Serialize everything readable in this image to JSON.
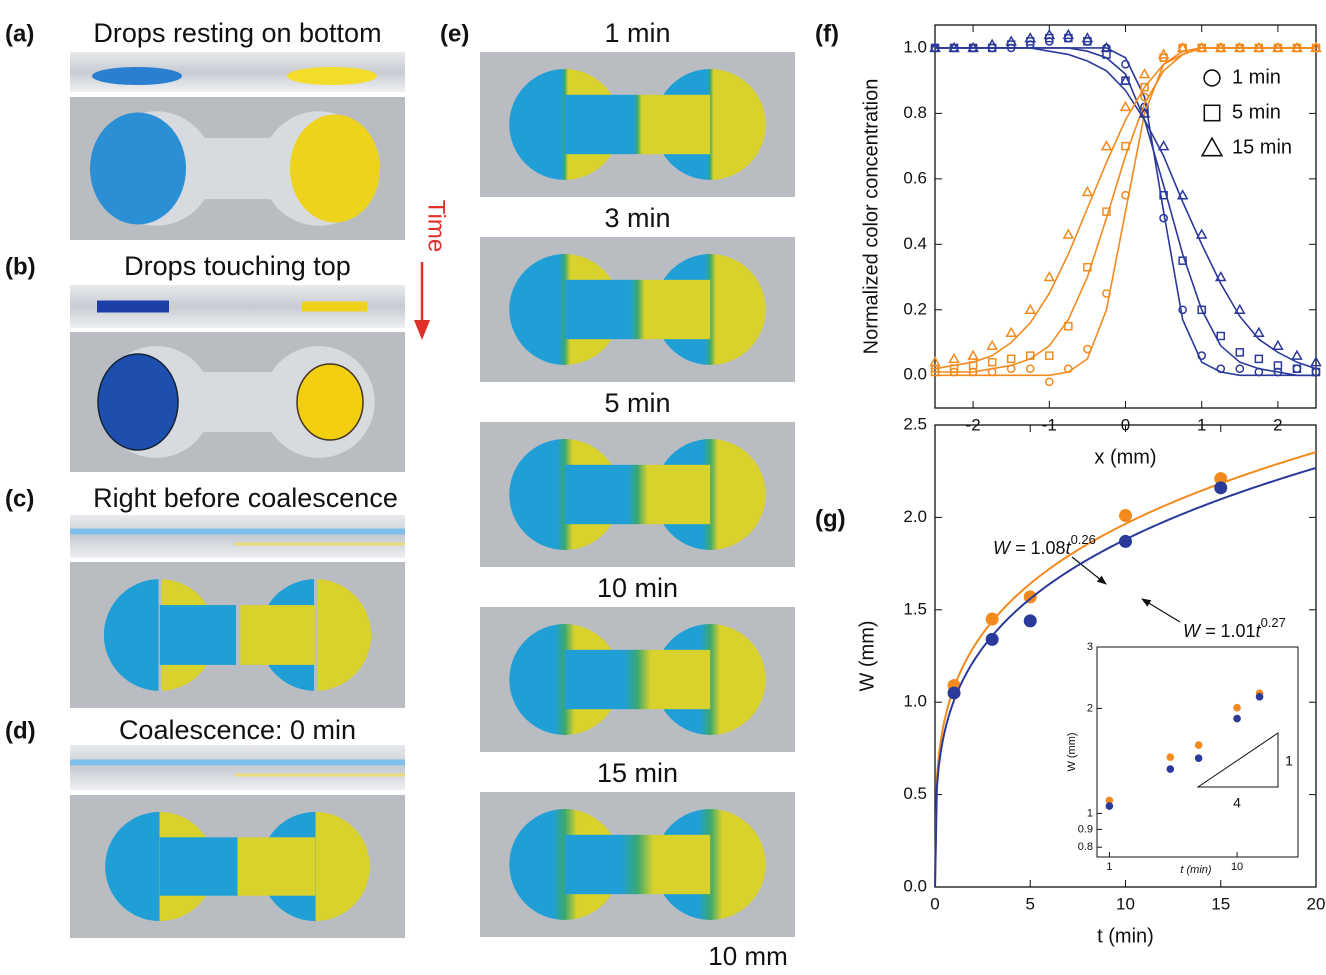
{
  "panels": [
    {
      "label": "(a)",
      "title": "Drops resting on bottom"
    },
    {
      "label": "(b)",
      "title": "Drops touching top"
    },
    {
      "label": "(c)",
      "title": "Right before coalescence"
    },
    {
      "label": "(d)",
      "title": "Coalescence: 0 min"
    },
    {
      "label": "(e)",
      "frames": [
        "1 min",
        "3 min",
        "5 min",
        "10 min",
        "15 min"
      ]
    }
  ],
  "time_arrow": "Time",
  "scale_bar": "10 mm",
  "chart_data": [
    {
      "type": "scatter",
      "panel": "(f)",
      "xlabel": "x (mm)",
      "ylabel": "Normalized color concentration",
      "xlim": [
        -2.5,
        2.5
      ],
      "ylim": [
        -0.1,
        1.07
      ],
      "xticks": [
        -2,
        -1,
        0,
        1,
        2
      ],
      "yticks": [
        {
          "value": 0,
          "label": "0.0"
        },
        0.2,
        0.4,
        0.6,
        0.8,
        {
          "value": 1,
          "label": "1.0"
        }
      ],
      "x": [
        -2.5,
        -2.25,
        -2,
        -1.75,
        -1.5,
        -1.25,
        -1,
        -0.75,
        -0.5,
        -0.25,
        0,
        0.25,
        0.5,
        0.75,
        1,
        1.25,
        1.5,
        1.75,
        2,
        2.25,
        2.5
      ],
      "series": [
        {
          "name": "1 min",
          "marker": "circle",
          "groups": [
            {
              "color": "#2b3a9a",
              "values": [
                1,
                1,
                1,
                1,
                1,
                1.01,
                1.02,
                1.03,
                1.02,
                1.0,
                0.95,
                0.82,
                0.48,
                0.2,
                0.06,
                0.02,
                0.02,
                0.01,
                0.01,
                0.02,
                0.01
              ],
              "fit": [
                1,
                1,
                1,
                1,
                1,
                1,
                1,
                1,
                1,
                1,
                0.97,
                0.85,
                0.5,
                0.17,
                0.04,
                0.01,
                0,
                0,
                0,
                0,
                0
              ]
            },
            {
              "color": "#f28a1e",
              "values": [
                0.02,
                0.01,
                0.01,
                0.01,
                0.02,
                0.02,
                -0.02,
                0.02,
                0.08,
                0.25,
                0.55,
                0.85,
                0.97,
                1,
                1,
                1,
                1,
                1,
                1,
                1,
                1
              ],
              "fit": [
                0,
                0,
                0,
                0,
                0,
                0,
                0,
                0.01,
                0.05,
                0.2,
                0.5,
                0.8,
                0.95,
                0.99,
                1,
                1,
                1,
                1,
                1,
                1,
                1
              ]
            }
          ]
        },
        {
          "name": "5 min",
          "marker": "square",
          "groups": [
            {
              "color": "#2b3a9a",
              "values": [
                1,
                1,
                1,
                1,
                1.01,
                1.02,
                1.03,
                1.03,
                1.02,
                0.98,
                0.9,
                0.8,
                0.55,
                0.35,
                0.2,
                0.12,
                0.07,
                0.05,
                0.03,
                0.02,
                0.01
              ],
              "fit": [
                1,
                1,
                1,
                1,
                1,
                1,
                1,
                1,
                0.99,
                0.97,
                0.92,
                0.78,
                0.58,
                0.37,
                0.2,
                0.09,
                0.04,
                0.02,
                0.01,
                0,
                0
              ]
            },
            {
              "color": "#f28a1e",
              "values": [
                0.01,
                0.02,
                0.03,
                0.04,
                0.05,
                0.06,
                0.06,
                0.15,
                0.33,
                0.5,
                0.7,
                0.88,
                0.97,
                1,
                1,
                1,
                1,
                1,
                1,
                1,
                1
              ],
              "fit": [
                0.01,
                0.01,
                0.01,
                0.02,
                0.03,
                0.05,
                0.09,
                0.17,
                0.3,
                0.48,
                0.67,
                0.83,
                0.93,
                0.98,
                1,
                1,
                1,
                1,
                1,
                1,
                1
              ]
            }
          ]
        },
        {
          "name": "15 min",
          "marker": "triangle",
          "groups": [
            {
              "color": "#2b3a9a",
              "values": [
                1,
                1,
                1,
                1.01,
                1.02,
                1.03,
                1.04,
                1.04,
                1.03,
                1.0,
                0.9,
                0.8,
                0.7,
                0.55,
                0.43,
                0.3,
                0.2,
                0.13,
                0.09,
                0.06,
                0.04
              ],
              "fit": [
                1,
                1,
                1,
                1,
                1,
                1,
                0.99,
                0.98,
                0.96,
                0.93,
                0.87,
                0.78,
                0.67,
                0.53,
                0.4,
                0.28,
                0.18,
                0.11,
                0.07,
                0.04,
                0.02
              ]
            },
            {
              "color": "#f28a1e",
              "values": [
                0.04,
                0.05,
                0.06,
                0.09,
                0.13,
                0.2,
                0.3,
                0.43,
                0.56,
                0.7,
                0.82,
                0.92,
                0.98,
                1,
                1,
                1,
                1,
                1,
                1,
                1,
                1
              ],
              "fit": [
                0.02,
                0.03,
                0.04,
                0.06,
                0.1,
                0.16,
                0.25,
                0.37,
                0.51,
                0.65,
                0.78,
                0.88,
                0.95,
                0.98,
                1,
                1,
                1,
                1,
                1,
                1,
                1
              ]
            }
          ]
        }
      ]
    },
    {
      "type": "scatter",
      "panel": "(g)",
      "xlabel": "t (min)",
      "ylabel": "W (mm)",
      "xlim": [
        0,
        20
      ],
      "ylim": [
        0,
        2.5
      ],
      "xticks": [
        0,
        5,
        10,
        15,
        20
      ],
      "yticks": [
        {
          "value": 0,
          "label": "0.0"
        },
        0.5,
        {
          "value": 1,
          "label": "1.0"
        },
        1.5,
        {
          "value": 2,
          "label": "2.0"
        },
        2.5
      ],
      "x": [
        1,
        3,
        5,
        10,
        15
      ],
      "series": [
        {
          "color": "#f28a1e",
          "values": [
            1.09,
            1.45,
            1.57,
            2.01,
            2.21
          ],
          "fit": {
            "lhs": "W = ",
            "a": 1.08,
            "var": "t",
            "b": 0.26
          }
        },
        {
          "color": "#2b3a9a",
          "values": [
            1.05,
            1.34,
            1.44,
            1.87,
            2.16
          ],
          "fit": {
            "lhs": "W = ",
            "a": 1.01,
            "var": "t",
            "b": 0.27
          }
        }
      ],
      "inset": {
        "log": true,
        "xlim": [
          0.8,
          30
        ],
        "ylim": [
          0.75,
          3
        ],
        "xticks": [
          1,
          10
        ],
        "yticks": [
          0.8,
          0.9,
          1,
          2,
          3
        ],
        "slope_run": 4,
        "slope_rise": 1
      }
    }
  ]
}
